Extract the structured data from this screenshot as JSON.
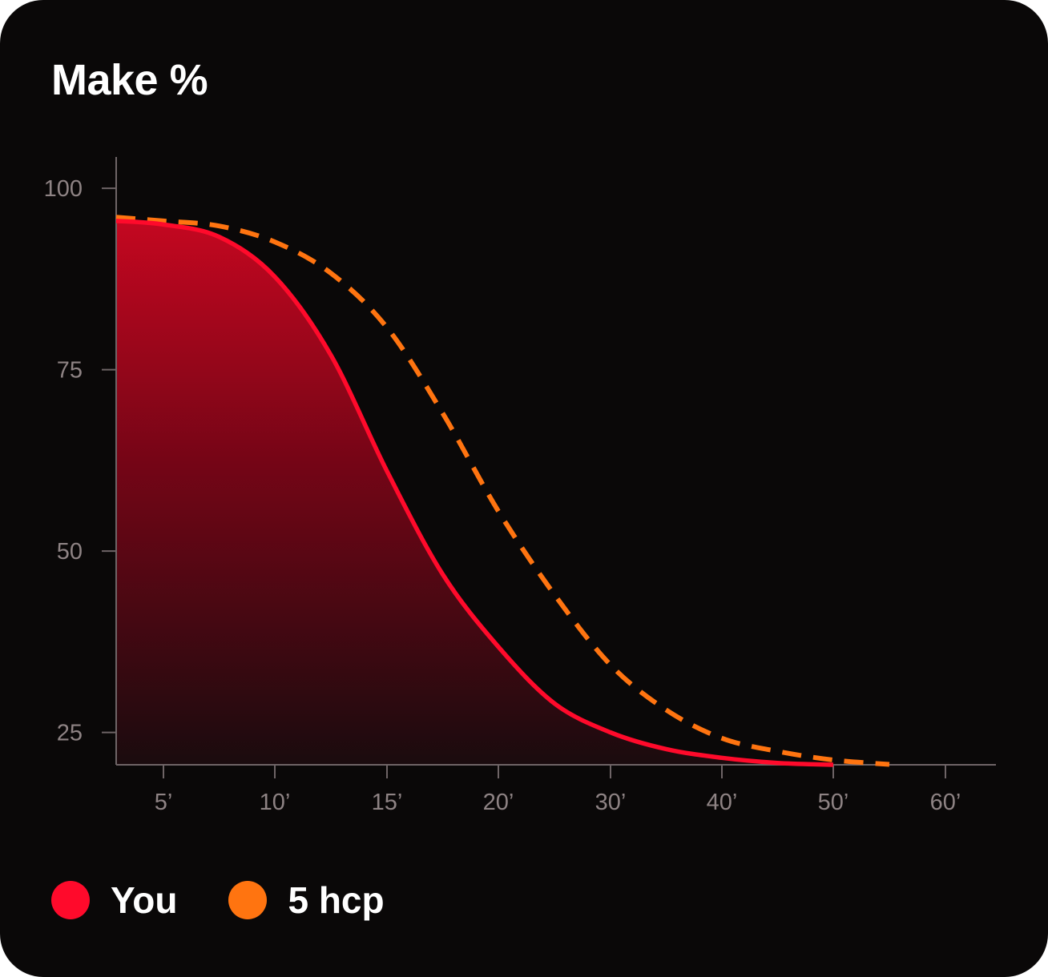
{
  "card": {
    "title": "Make %"
  },
  "legend": [
    {
      "label": "You",
      "color": "#ff0a2b"
    },
    {
      "label": "5 hcp",
      "color": "#ff7410"
    }
  ],
  "chart_data": {
    "type": "area",
    "title": "Make %",
    "xlabel": "",
    "ylabel": "",
    "x_tick_labels": [
      "5’",
      "10’",
      "15’",
      "20’",
      "30’",
      "40’",
      "50’",
      "60’"
    ],
    "y_ticks": [
      100,
      75,
      50,
      25
    ],
    "ylim": [
      20.5,
      105
    ],
    "grid": false,
    "legend_position": "bottom-left",
    "series": [
      {
        "name": "You",
        "color": "#ff0a2b",
        "style": "solid-with-area-fill",
        "x": [
          "3’",
          "5’",
          "7.5’",
          "10’",
          "12.5’",
          "15’",
          "17.5’",
          "20’",
          "25’",
          "30’",
          "35’",
          "40’",
          "45’",
          "50’"
        ],
        "y": [
          95.5,
          95.0,
          93.3,
          87.8,
          77.0,
          61.0,
          46.8,
          36.8,
          29.0,
          25.0,
          22.7,
          21.5,
          20.8,
          20.5
        ]
      },
      {
        "name": "5 hcp",
        "color": "#ff7410",
        "style": "dashed",
        "x": [
          "3’",
          "5’",
          "7.5’",
          "10’",
          "12.5’",
          "15’",
          "17.5’",
          "20’",
          "25’",
          "30’",
          "35’",
          "40’",
          "45’",
          "50’",
          "55’"
        ],
        "y": [
          96.0,
          95.5,
          94.8,
          92.6,
          88.3,
          80.8,
          69.0,
          55.5,
          44.0,
          34.3,
          28.1,
          24.2,
          22.4,
          21.2,
          20.6
        ]
      }
    ]
  }
}
